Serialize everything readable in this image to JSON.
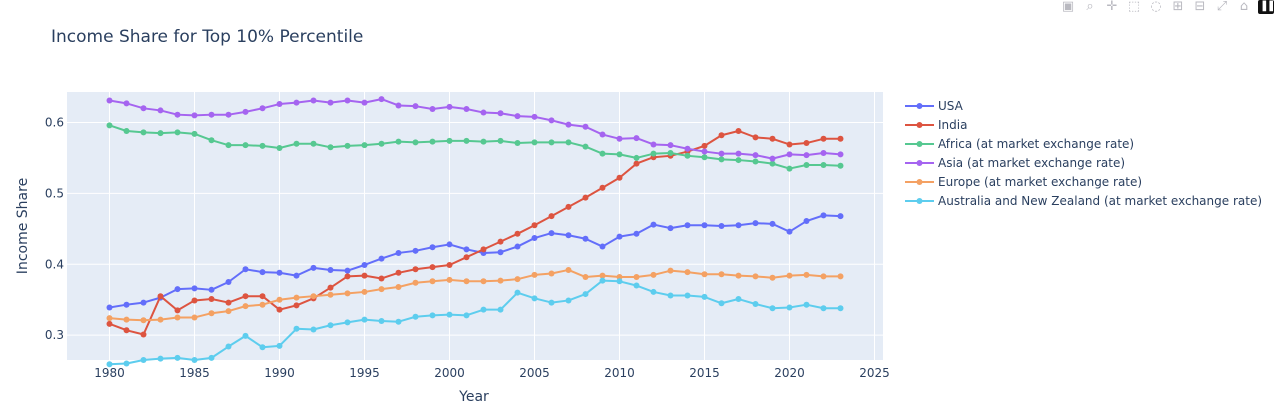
{
  "modebar": {
    "buttons": [
      {
        "name": "camera-icon",
        "glyph": "▣"
      },
      {
        "name": "zoom-icon",
        "glyph": "⌕"
      },
      {
        "name": "pan-icon",
        "glyph": "✛"
      },
      {
        "name": "box-select-icon",
        "glyph": "⬚"
      },
      {
        "name": "lasso-icon",
        "glyph": "◌"
      },
      {
        "name": "zoom-in-icon",
        "glyph": "⊞"
      },
      {
        "name": "zoom-out-icon",
        "glyph": "⊟"
      },
      {
        "name": "autoscale-icon",
        "glyph": "⤢"
      },
      {
        "name": "home-icon",
        "glyph": "⌂"
      }
    ],
    "logo": "▐▐"
  },
  "chart_data": {
    "type": "line",
    "title": "Income Share for Top 10% Percentile",
    "xlabel": "Year",
    "ylabel": "Income Share",
    "xlim": [
      1977.5,
      2025.5
    ],
    "ylim": [
      0.265,
      0.643
    ],
    "xticks": [
      1980,
      1985,
      1990,
      1995,
      2000,
      2005,
      2010,
      2015,
      2020,
      2025
    ],
    "yticks": [
      0.3,
      0.4,
      0.5,
      0.6
    ],
    "grid": true,
    "legend_position": "right",
    "x": [
      1980,
      1981,
      1982,
      1983,
      1984,
      1985,
      1986,
      1987,
      1988,
      1989,
      1990,
      1991,
      1992,
      1993,
      1994,
      1995,
      1996,
      1997,
      1998,
      1999,
      2000,
      2001,
      2002,
      2003,
      2004,
      2005,
      2006,
      2007,
      2008,
      2009,
      2010,
      2011,
      2012,
      2013,
      2014,
      2015,
      2016,
      2017,
      2018,
      2019,
      2020,
      2021,
      2022,
      2023
    ],
    "series": [
      {
        "name": "USA",
        "color": "#636efa",
        "values": [
          0.339,
          0.343,
          0.346,
          0.353,
          0.365,
          0.366,
          0.364,
          0.375,
          0.393,
          0.389,
          0.388,
          0.384,
          0.395,
          0.392,
          0.391,
          0.399,
          0.408,
          0.416,
          0.419,
          0.424,
          0.428,
          0.421,
          0.416,
          0.417,
          0.425,
          0.437,
          0.444,
          0.441,
          0.436,
          0.425,
          0.439,
          0.443,
          0.456,
          0.451,
          0.455,
          0.455,
          0.454,
          0.455,
          0.458,
          0.457,
          0.446,
          0.461,
          0.469,
          0.468
        ]
      },
      {
        "name": "India",
        "color": "#dd5440",
        "values": [
          0.316,
          0.307,
          0.301,
          0.355,
          0.335,
          0.349,
          0.351,
          0.346,
          0.355,
          0.355,
          0.336,
          0.342,
          0.352,
          0.367,
          0.383,
          0.384,
          0.38,
          0.388,
          0.393,
          0.396,
          0.399,
          0.41,
          0.421,
          0.432,
          0.443,
          0.455,
          0.468,
          0.481,
          0.494,
          0.508,
          0.522,
          0.542,
          0.551,
          0.553,
          0.559,
          0.567,
          0.582,
          0.588,
          0.579,
          0.577,
          0.569,
          0.571,
          0.577,
          0.577
        ]
      },
      {
        "name": "Africa (at market exchange rate)",
        "color": "#56c891",
        "values": [
          0.596,
          0.588,
          0.586,
          0.585,
          0.586,
          0.584,
          0.575,
          0.568,
          0.568,
          0.567,
          0.564,
          0.57,
          0.57,
          0.565,
          0.567,
          0.568,
          0.57,
          0.573,
          0.572,
          0.573,
          0.574,
          0.574,
          0.573,
          0.574,
          0.571,
          0.572,
          0.572,
          0.572,
          0.566,
          0.556,
          0.555,
          0.55,
          0.556,
          0.557,
          0.553,
          0.551,
          0.548,
          0.547,
          0.545,
          0.542,
          0.535,
          0.54,
          0.54,
          0.539
        ]
      },
      {
        "name": "Asia (at market exchange rate)",
        "color": "#a564f0",
        "values": [
          0.631,
          0.627,
          0.62,
          0.617,
          0.611,
          0.61,
          0.611,
          0.611,
          0.615,
          0.62,
          0.626,
          0.628,
          0.631,
          0.628,
          0.631,
          0.628,
          0.633,
          0.624,
          0.623,
          0.619,
          0.622,
          0.619,
          0.614,
          0.613,
          0.609,
          0.608,
          0.603,
          0.597,
          0.594,
          0.583,
          0.577,
          0.578,
          0.569,
          0.568,
          0.563,
          0.559,
          0.556,
          0.556,
          0.554,
          0.549,
          0.555,
          0.554,
          0.557,
          0.555
        ]
      },
      {
        "name": "Europe (at market exchange rate)",
        "color": "#f4a163",
        "values": [
          0.324,
          0.322,
          0.321,
          0.322,
          0.325,
          0.325,
          0.331,
          0.334,
          0.341,
          0.343,
          0.35,
          0.353,
          0.355,
          0.357,
          0.359,
          0.361,
          0.365,
          0.368,
          0.374,
          0.376,
          0.378,
          0.376,
          0.376,
          0.377,
          0.379,
          0.385,
          0.387,
          0.392,
          0.382,
          0.384,
          0.382,
          0.382,
          0.385,
          0.391,
          0.389,
          0.386,
          0.386,
          0.384,
          0.383,
          0.381,
          0.384,
          0.385,
          0.383,
          0.383
        ]
      },
      {
        "name": "Australia and New Zealand (at market exchange rate)",
        "color": "#5dcdee",
        "values": [
          0.259,
          0.26,
          0.265,
          0.267,
          0.268,
          0.265,
          0.268,
          0.284,
          0.299,
          0.283,
          0.285,
          0.309,
          0.308,
          0.314,
          0.318,
          0.322,
          0.32,
          0.319,
          0.326,
          0.328,
          0.329,
          0.328,
          0.336,
          0.336,
          0.36,
          0.352,
          0.346,
          0.349,
          0.358,
          0.377,
          0.376,
          0.37,
          0.361,
          0.356,
          0.356,
          0.354,
          0.345,
          0.351,
          0.344,
          0.338,
          0.339,
          0.343,
          0.338,
          0.338
        ]
      }
    ]
  }
}
